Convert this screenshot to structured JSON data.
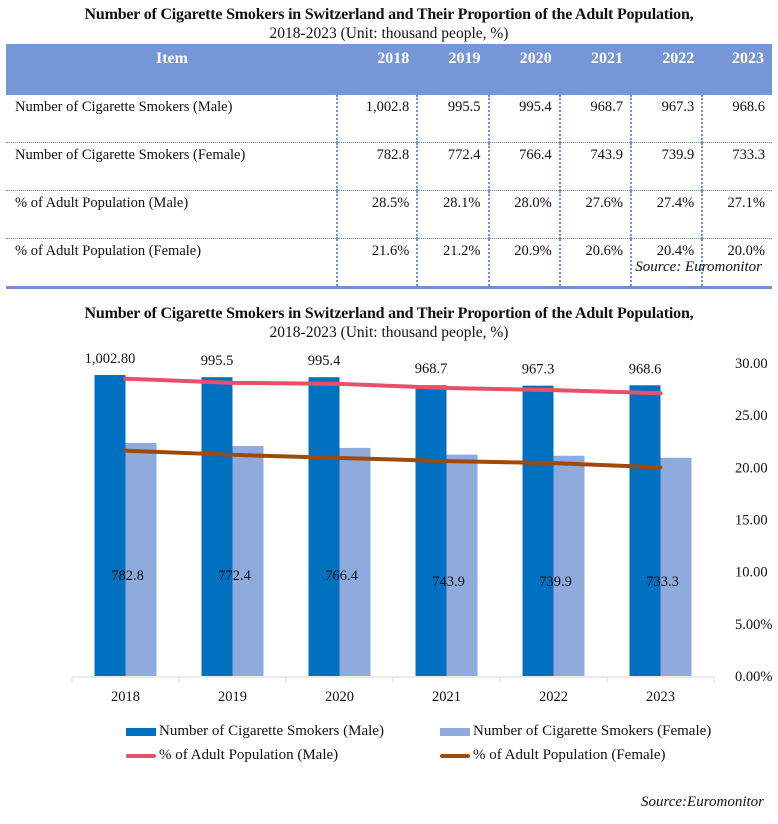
{
  "table": {
    "title_line1": "Number of Cigarette Smokers in Switzerland and Their Proportion of the Adult Population,",
    "title_line2": "2018-2023 (Unit: thousand people, %)",
    "header_item": "Item",
    "years": [
      "2018",
      "2019",
      "2020",
      "2021",
      "2022",
      "2023"
    ],
    "rows": [
      {
        "label": "Number of Cigarette Smokers (Male)",
        "values": [
          "1,002.8",
          "995.5",
          "995.4",
          "968.7",
          "967.3",
          "968.6"
        ]
      },
      {
        "label": "Number of Cigarette Smokers (Female)",
        "values": [
          "782.8",
          "772.4",
          "766.4",
          "743.9",
          "739.9",
          "733.3"
        ]
      },
      {
        "label": "% of Adult Population (Male)",
        "values": [
          "28.5%",
          "28.1%",
          "28.0%",
          "27.6%",
          "27.4%",
          "27.1%"
        ]
      },
      {
        "label": "% of Adult Population (Female)",
        "values": [
          "21.6%",
          "21.2%",
          "20.9%",
          "20.6%",
          "20.4%",
          "20.0%"
        ]
      }
    ],
    "source": "Source:  Euromonitor"
  },
  "chart_data": {
    "type": "bar",
    "title": "Number of Cigarette Smokers in Switzerland and Their Proportion of the Adult Population,",
    "subtitle": "2018-2023 (Unit: thousand people, %)",
    "categories": [
      "2018",
      "2019",
      "2020",
      "2021",
      "2022",
      "2023"
    ],
    "series": [
      {
        "name": "Number of Cigarette Smokers (Male)",
        "kind": "bar",
        "axis": "left",
        "color": "#0070c0",
        "values": [
          1002.8,
          995.5,
          995.4,
          968.7,
          967.3,
          968.6
        ],
        "labels": [
          "1,002.80",
          "995.5",
          "995.4",
          "968.7",
          "967.3",
          "968.6"
        ]
      },
      {
        "name": "Number of Cigarette Smokers (Female)",
        "kind": "bar",
        "axis": "left",
        "color": "#8faadc",
        "values": [
          782.8,
          772.4,
          766.4,
          743.9,
          739.9,
          733.3
        ],
        "labels": [
          "782.8",
          "772.4",
          "766.4",
          "743.9",
          "739.9",
          "733.3"
        ]
      },
      {
        "name": "% of Adult Population (Male)",
        "kind": "line",
        "axis": "right",
        "color": "#e8506a",
        "values": [
          28.5,
          28.1,
          28.0,
          27.6,
          27.4,
          27.1
        ]
      },
      {
        "name": "% of Adult Population (Female)",
        "kind": "line",
        "axis": "right",
        "color": "#9e4a0c",
        "values": [
          21.6,
          21.2,
          20.9,
          20.6,
          20.4,
          20.0
        ]
      }
    ],
    "left_axis": {
      "range": [
        0,
        1200
      ],
      "visible": false
    },
    "right_axis": {
      "range": [
        0,
        30
      ],
      "ticks": [
        "0.00%",
        "5.00%",
        "10.00",
        "15.00",
        "20.00",
        "25.00",
        "30.00"
      ]
    },
    "grid": false,
    "legend_position": "bottom",
    "source": "Source:Euromonitor"
  }
}
